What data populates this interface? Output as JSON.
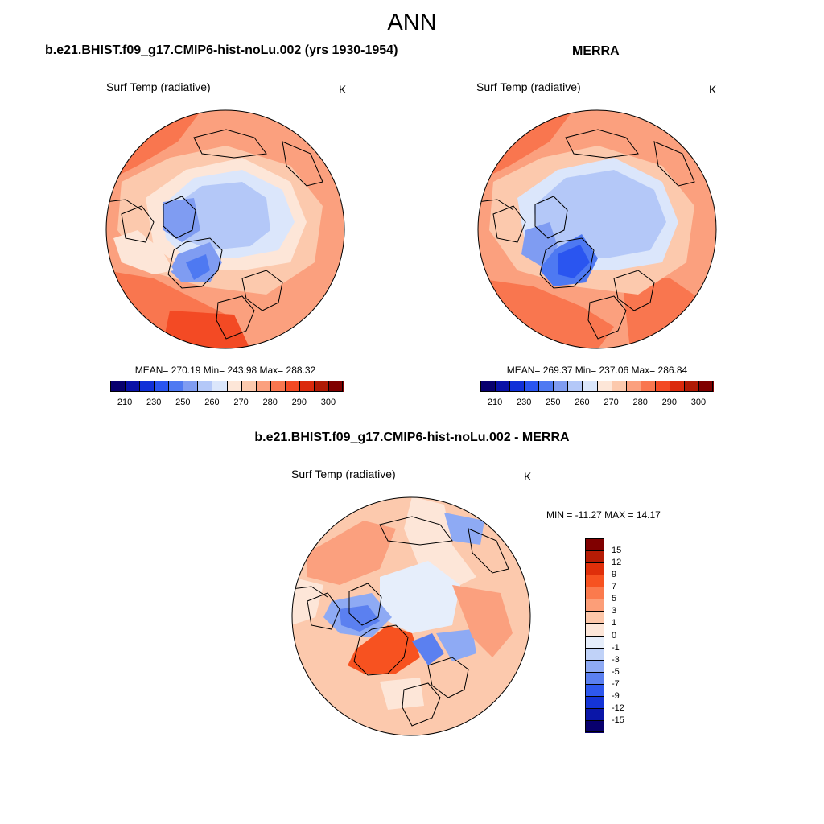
{
  "title": "ANN",
  "panels": [
    {
      "case_title": "b.e21.BHIST.f09_g17.CMIP6-hist-noLu.002 (yrs 1930-1954)",
      "variable": "Surf Temp (radiative)",
      "units": "K",
      "stats": "MEAN= 270.19  Min= 243.98  Max= 288.32"
    },
    {
      "case_title": "MERRA",
      "variable": "Surf Temp (radiative)",
      "units": "K",
      "stats": "MEAN= 269.37  Min= 237.06  Max= 286.84"
    },
    {
      "case_title": "b.e21.BHIST.f09_g17.CMIP6-hist-noLu.002 - MERRA",
      "variable": "Surf Temp (radiative)",
      "units": "K",
      "stats": "MIN = -11.27 MAX =  14.17"
    }
  ],
  "colorbar_abs": {
    "ticks": [
      "210",
      "230",
      "250",
      "260",
      "270",
      "280",
      "290",
      "300"
    ],
    "colors": [
      "#08006e",
      "#0a12a8",
      "#1030d8",
      "#2a55f0",
      "#4e79f2",
      "#7f9cf2",
      "#b4c8f8",
      "#dbe6fb",
      "#fde6d8",
      "#fcc9ad",
      "#fba07e",
      "#f9764f",
      "#f34a24",
      "#db2a0c",
      "#b01a05",
      "#800000"
    ]
  },
  "colorbar_diff": {
    "ticks": [
      "15",
      "12",
      "9",
      "7",
      "5",
      "3",
      "1",
      "0",
      "-1",
      "-3",
      "-5",
      "-7",
      "-9",
      "-12",
      "-15"
    ],
    "colors": [
      "#800000",
      "#b51c05",
      "#df2f0a",
      "#f75220",
      "#fb7a4d",
      "#fc9e78",
      "#fdc7a9",
      "#fde6d8",
      "#e6eefb",
      "#c0d2f8",
      "#8eaaf4",
      "#5b80f0",
      "#2e58ee",
      "#1434d6",
      "#0a16a8",
      "#08006e"
    ]
  }
}
